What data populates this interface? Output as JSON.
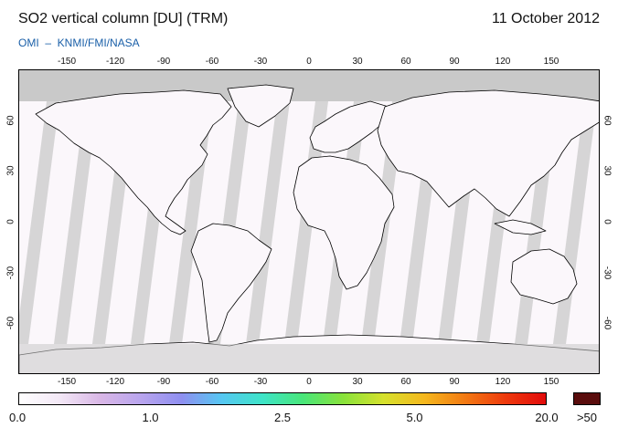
{
  "header": {
    "title": "SO2 vertical column [DU] (TRM)",
    "date": "11 October 2012",
    "subtitle": "OMI  –  KNMI/FMI/NASA"
  },
  "map": {
    "projection": "equirectangular",
    "lon_range": [
      -180,
      180
    ],
    "lat_range": [
      -90,
      90
    ],
    "lon_ticks": [
      "-150",
      "-120",
      "-90",
      "-60",
      "-30",
      "0",
      "30",
      "60",
      "90",
      "120",
      "150"
    ],
    "lat_ticks": [
      "60",
      "30",
      "0",
      "-30",
      "-60"
    ],
    "colors": {
      "no_data": "#c9c9c9",
      "swath_gap": "#cfcfcf",
      "background": "#fbf7fb",
      "land_shade": "#a7a7a7",
      "coast": "#000000"
    }
  },
  "colorbar": {
    "labels": [
      "0.0",
      "1.0",
      "2.5",
      "5.0",
      "20.0"
    ],
    "overflow_label": ">50",
    "overflow_color": "#5a0d0d",
    "stops": [
      "#ffffff",
      "#f3e8f6",
      "#d9b7e6",
      "#b9a5ee",
      "#8f8ff0",
      "#56c7f2",
      "#3ee4c8",
      "#49e67a",
      "#89e23b",
      "#d6e12d",
      "#f5b81e",
      "#f27a13",
      "#ee3a0d",
      "#e20b0b"
    ]
  }
}
